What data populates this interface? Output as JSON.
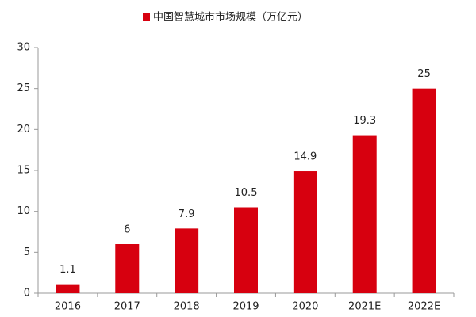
{
  "chart_data": {
    "type": "bar",
    "categories": [
      "2016",
      "2017",
      "2018",
      "2019",
      "2020",
      "2021E",
      "2022E"
    ],
    "series": [
      {
        "name": "中国智慧城市市场规模（万亿元）",
        "color": "#d7000f",
        "values": [
          1.1,
          6,
          7.9,
          10.5,
          14.9,
          19.3,
          25
        ]
      }
    ],
    "ylim": [
      0,
      30
    ],
    "yticks": [
      0,
      5,
      10,
      15,
      20,
      25,
      30
    ],
    "grid": false,
    "legend": "top"
  }
}
